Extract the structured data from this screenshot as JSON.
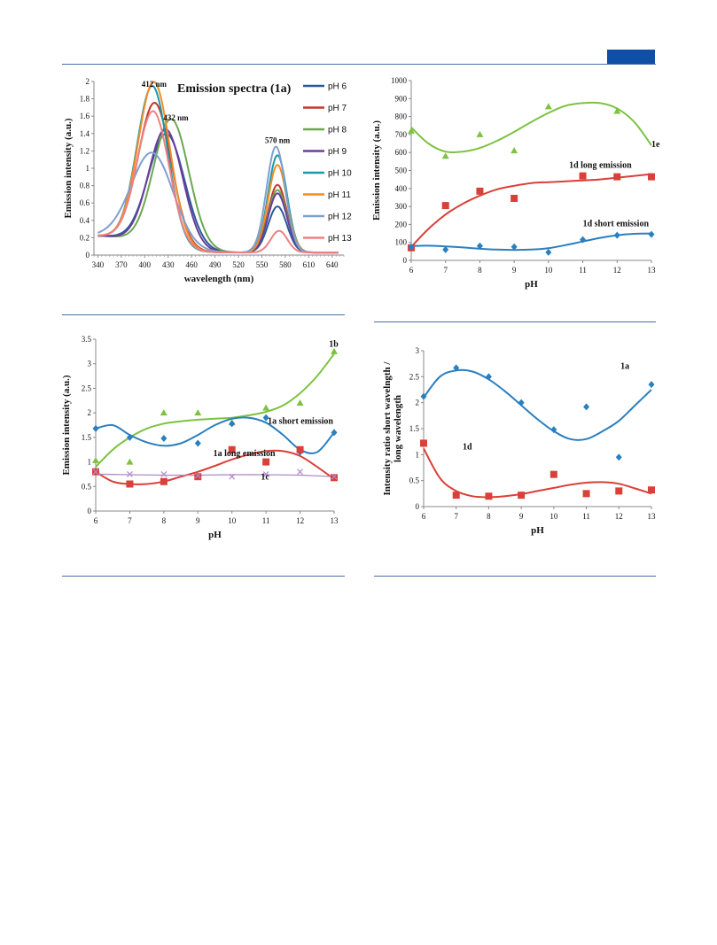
{
  "page": {
    "accent": "#0f4fa8"
  },
  "chart_data": [
    {
      "id": "emission-spectra",
      "type": "line",
      "title": "Emission spectra (1a)",
      "xlabel": "wavelength (nm)",
      "ylabel": "Emission intensity  (a.u.)",
      "xlim": [
        335,
        655
      ],
      "ylim": [
        0,
        2
      ],
      "xticks": [
        340,
        370,
        400,
        430,
        460,
        490,
        520,
        550,
        580,
        610,
        640
      ],
      "yticks": [
        0,
        0.2,
        0.4,
        0.6,
        0.8,
        1,
        1.2,
        1.4,
        1.6,
        1.8,
        2
      ],
      "annotations": [
        {
          "text": "412 nm",
          "x": 412,
          "y": 1.94
        },
        {
          "text": "432 nm",
          "x": 440,
          "y": 1.55
        },
        {
          "text": "570 nm",
          "x": 570,
          "y": 1.29
        }
      ],
      "legend_position": "right",
      "series": [
        {
          "name": "pH 6",
          "color": "#2b5b9a",
          "a1": 1.32,
          "c1": 428,
          "w1": 33,
          "a2": 0.53,
          "c2": 570,
          "w2": 17
        },
        {
          "name": "pH 7",
          "color": "#c0392b",
          "a1": 1.65,
          "c1": 413,
          "w1": 30,
          "a2": 0.78,
          "c2": 570,
          "w2": 17
        },
        {
          "name": "pH 8",
          "color": "#6aa84f",
          "a1": 1.5,
          "c1": 434,
          "w1": 32,
          "a2": 0.72,
          "c2": 570,
          "w2": 17
        },
        {
          "name": "pH 9",
          "color": "#6a3d9a",
          "a1": 1.37,
          "c1": 427,
          "w1": 31,
          "a2": 0.68,
          "c2": 570,
          "w2": 17
        },
        {
          "name": "pH 10",
          "color": "#1a9aa8",
          "a1": 1.84,
          "c1": 410,
          "w1": 28,
          "a2": 1.12,
          "c2": 570,
          "w2": 17
        },
        {
          "name": "pH 11",
          "color": "#f28c28",
          "a1": 1.89,
          "c1": 412,
          "w1": 29,
          "a2": 1.01,
          "c2": 570,
          "w2": 17
        },
        {
          "name": "pH 12",
          "color": "#7f9fcf",
          "a1": 1.07,
          "c1": 410,
          "w1": 38,
          "a2": 1.22,
          "c2": 568,
          "w2": 17
        },
        {
          "name": "pH 13",
          "color": "#f08080",
          "a1": 1.55,
          "c1": 411,
          "w1": 29,
          "a2": 0.25,
          "c2": 572,
          "w2": 15
        }
      ]
    },
    {
      "id": "emission-1d-1e",
      "type": "scatter",
      "xlabel": "pH",
      "ylabel": "Emission intensity (a.u.)",
      "xlim": [
        6,
        13
      ],
      "ylim": [
        0,
        1000
      ],
      "xticks": [
        6,
        7,
        8,
        9,
        10,
        11,
        12,
        13
      ],
      "yticks": [
        0,
        100,
        200,
        300,
        400,
        500,
        600,
        700,
        800,
        900,
        1000
      ],
      "series": [
        {
          "name": "1e",
          "label_x": 13.0,
          "label_y": 630,
          "color": "#7dc242",
          "marker": "triangle",
          "x": [
            6,
            7,
            8,
            9,
            10,
            11,
            12,
            13
          ],
          "y": [
            720,
            580,
            700,
            610,
            855,
            "",
            830,
            ""
          ],
          "trend_x": [
            6,
            6.5,
            7,
            7.5,
            8,
            8.5,
            9,
            9.5,
            10,
            10.5,
            11,
            11.5,
            12,
            12.5,
            13
          ],
          "trend_y": [
            740,
            650,
            605,
            605,
            625,
            665,
            715,
            770,
            820,
            860,
            875,
            875,
            845,
            770,
            640
          ]
        },
        {
          "name": "1d long emission",
          "label_x": 10.6,
          "label_y": 515,
          "color": "#d9403a",
          "marker": "square",
          "x": [
            6,
            7,
            8,
            9,
            11,
            12,
            13
          ],
          "y": [
            70,
            305,
            385,
            345,
            470,
            465,
            465
          ],
          "trend_x": [
            6,
            6.5,
            7,
            7.5,
            8,
            8.5,
            9,
            9.5,
            10,
            10.5,
            11,
            11.5,
            12,
            12.5,
            13
          ],
          "trend_y": [
            75,
            175,
            255,
            315,
            360,
            395,
            415,
            430,
            435,
            440,
            445,
            450,
            460,
            470,
            480
          ]
        },
        {
          "name": "1d short emission",
          "label_x": 11.0,
          "label_y": 190,
          "color": "#2a7fbf",
          "marker": "diamond",
          "x": [
            6,
            7,
            8,
            9,
            10,
            11,
            12,
            13
          ],
          "y": [
            75,
            60,
            80,
            75,
            45,
            115,
            140,
            145
          ],
          "trend_x": [
            6,
            6.5,
            7,
            7.5,
            8,
            8.5,
            9,
            9.5,
            10,
            10.5,
            11,
            11.5,
            12,
            12.5,
            13
          ],
          "trend_y": [
            80,
            82,
            78,
            72,
            65,
            60,
            58,
            60,
            68,
            85,
            105,
            125,
            140,
            148,
            150
          ]
        }
      ]
    },
    {
      "id": "emission-1a-1b-1c",
      "type": "scatter",
      "xlabel": "pH",
      "ylabel": "Emission intensity  (a.u.)",
      "xlim": [
        6,
        13
      ],
      "ylim": [
        0,
        3.5
      ],
      "xticks": [
        6,
        7,
        8,
        9,
        10,
        11,
        12,
        13
      ],
      "yticks": [
        0,
        0.5,
        1,
        1.5,
        2,
        2.5,
        3,
        3.5
      ],
      "series": [
        {
          "name": "1b",
          "label_x": 12.85,
          "label_y": 3.35,
          "color": "#7dc242",
          "marker": "triangle",
          "x": [
            6,
            7,
            8,
            9,
            10,
            11,
            12,
            13
          ],
          "y": [
            1.03,
            1.0,
            2.0,
            2.0,
            1.8,
            2.1,
            2.2,
            3.25
          ],
          "trend_x": [
            6,
            6.5,
            7,
            7.5,
            8,
            8.5,
            9,
            9.5,
            10,
            10.5,
            11,
            11.5,
            12,
            12.5,
            13
          ],
          "trend_y": [
            0.9,
            1.25,
            1.5,
            1.68,
            1.78,
            1.83,
            1.86,
            1.88,
            1.9,
            1.95,
            2.02,
            2.15,
            2.4,
            2.75,
            3.2
          ]
        },
        {
          "name": "1a short emission",
          "label_x": 11.05,
          "label_y": 1.78,
          "color": "#2a7fbf",
          "marker": "diamond",
          "x": [
            6,
            7,
            8,
            9,
            10,
            11,
            12,
            13
          ],
          "y": [
            1.68,
            1.5,
            1.48,
            1.38,
            1.78,
            1.9,
            1.2,
            1.6
          ],
          "trend_x": [
            6,
            6.5,
            7,
            7.5,
            8,
            8.5,
            9,
            9.5,
            10,
            10.5,
            11,
            11.5,
            12,
            12.5,
            13
          ],
          "trend_y": [
            1.68,
            1.75,
            1.55,
            1.4,
            1.33,
            1.38,
            1.55,
            1.75,
            1.88,
            1.9,
            1.8,
            1.55,
            1.25,
            1.2,
            1.6
          ]
        },
        {
          "name": "1a long emission",
          "label_x": 9.45,
          "label_y": 1.12,
          "color": "#d9403a",
          "marker": "square",
          "x": [
            6,
            7,
            8,
            9,
            10,
            11,
            12,
            13
          ],
          "y": [
            0.8,
            0.55,
            0.6,
            0.7,
            1.25,
            1.0,
            1.25,
            0.68
          ],
          "trend_x": [
            6,
            6.5,
            7,
            7.5,
            8,
            8.5,
            9,
            9.5,
            10,
            10.5,
            11,
            11.5,
            12,
            12.5,
            13
          ],
          "trend_y": [
            0.8,
            0.6,
            0.55,
            0.55,
            0.6,
            0.7,
            0.8,
            0.92,
            1.05,
            1.15,
            1.22,
            1.22,
            1.12,
            0.9,
            0.65
          ]
        },
        {
          "name": "1c",
          "label_x": 10.85,
          "label_y": 0.64,
          "color": "#b08ac8",
          "marker": "cross",
          "x": [
            6,
            7,
            8,
            9,
            10,
            11,
            12,
            13
          ],
          "y": [
            0.8,
            0.75,
            0.75,
            0.72,
            0.7,
            0.75,
            0.8,
            0.7
          ],
          "trend_x": [
            6,
            7,
            8,
            9,
            10,
            11,
            12,
            13
          ],
          "trend_y": [
            0.75,
            0.74,
            0.73,
            0.73,
            0.74,
            0.74,
            0.73,
            0.7
          ]
        }
      ]
    },
    {
      "id": "intensity-ratio",
      "type": "scatter",
      "xlabel": "pH",
      "ylabel": "Intensity ratio short wavelngth /",
      "ylabel2": "long wavelength",
      "xlim": [
        6,
        13
      ],
      "ylim": [
        0,
        3
      ],
      "xticks": [
        6,
        7,
        8,
        9,
        10,
        11,
        12,
        13
      ],
      "yticks": [
        0,
        0.5,
        1,
        1.5,
        2,
        2.5,
        3
      ],
      "series": [
        {
          "name": "1a",
          "label_x": 12.05,
          "label_y": 2.65,
          "color": "#2a7fbf",
          "marker": "diamond",
          "x": [
            6,
            7,
            8,
            9,
            10,
            11,
            12,
            13
          ],
          "y": [
            2.12,
            2.67,
            2.5,
            2.0,
            1.48,
            1.92,
            0.95,
            2.35
          ],
          "trend_x": [
            6,
            6.5,
            7,
            7.5,
            8,
            8.5,
            9,
            9.5,
            10,
            10.5,
            11,
            11.5,
            12,
            12.5,
            13
          ],
          "trend_y": [
            2.1,
            2.5,
            2.62,
            2.6,
            2.45,
            2.22,
            1.95,
            1.68,
            1.45,
            1.3,
            1.3,
            1.45,
            1.65,
            1.95,
            2.25
          ]
        },
        {
          "name": "1d",
          "label_x": 7.2,
          "label_y": 1.1,
          "color": "#d9403a",
          "marker": "square",
          "x": [
            6,
            7,
            8,
            9,
            10,
            11,
            12,
            13
          ],
          "y": [
            1.22,
            0.22,
            0.2,
            0.22,
            0.62,
            0.25,
            0.3,
            0.32
          ],
          "trend_x": [
            6,
            6.5,
            7,
            7.5,
            8,
            8.5,
            9,
            9.5,
            10,
            10.5,
            11,
            11.5,
            12,
            12.5,
            13
          ],
          "trend_y": [
            1.12,
            0.55,
            0.3,
            0.2,
            0.18,
            0.2,
            0.24,
            0.3,
            0.36,
            0.42,
            0.46,
            0.47,
            0.44,
            0.35,
            0.25
          ]
        }
      ]
    }
  ]
}
